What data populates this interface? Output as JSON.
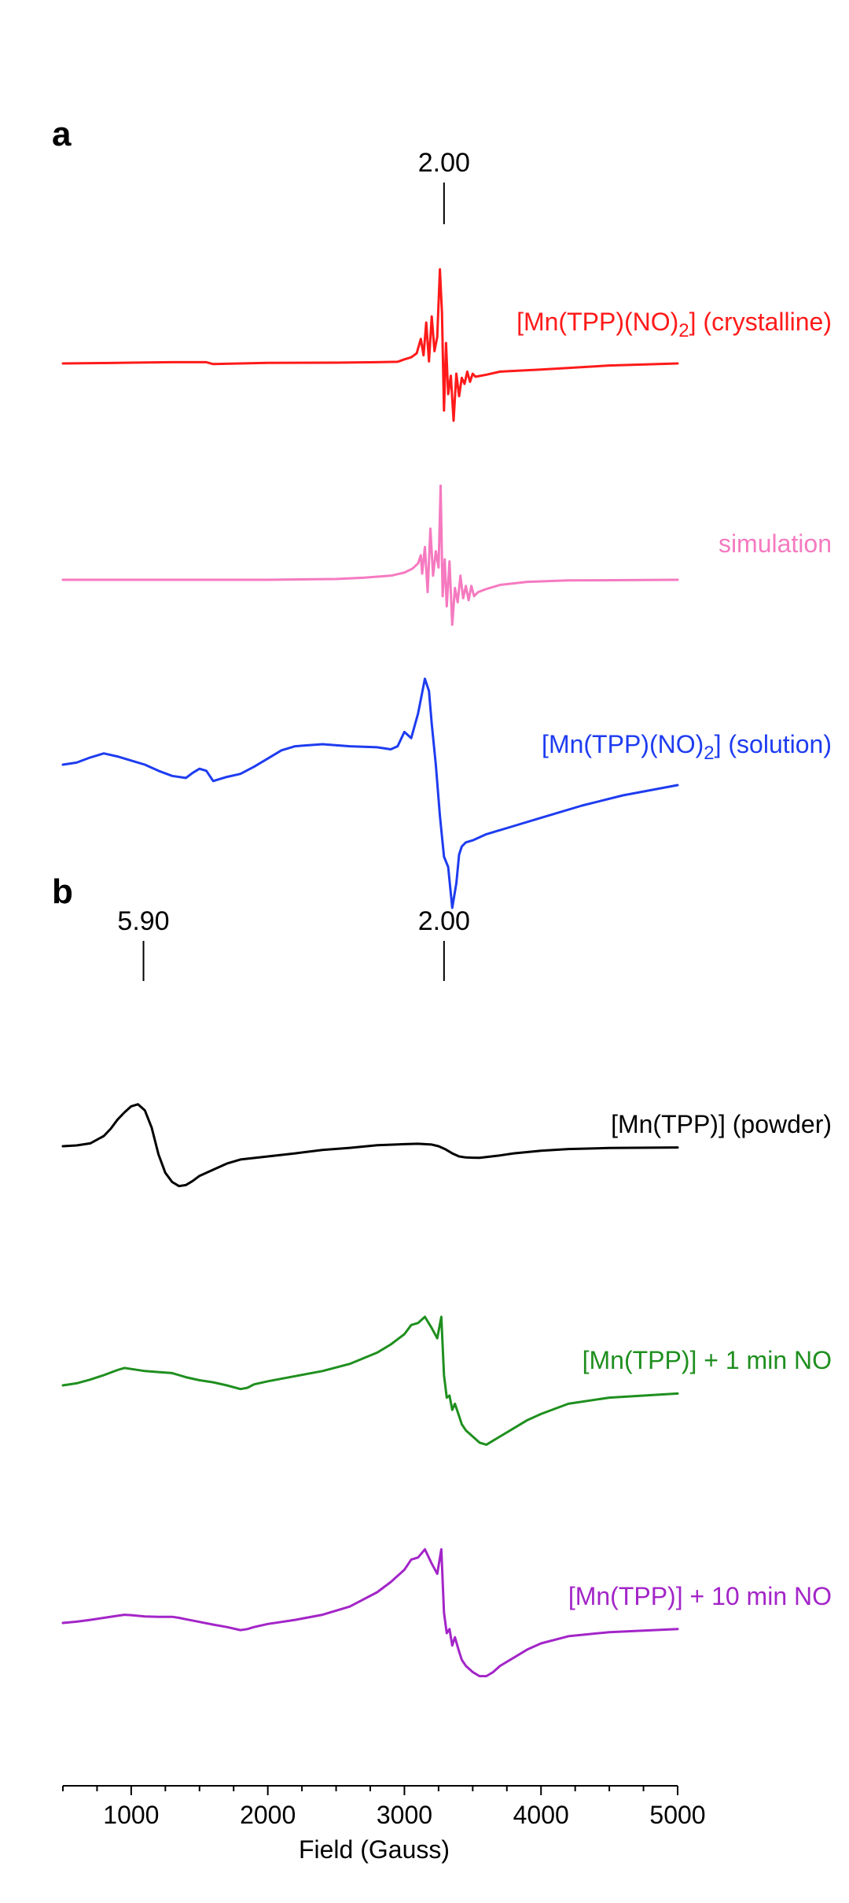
{
  "chart_data": {
    "type": "line",
    "xlabel": "Field (Gauss)",
    "xlim": [
      500,
      5000
    ],
    "xticks": [
      1000,
      2000,
      3000,
      4000,
      5000
    ],
    "grid": false,
    "panels": [
      {
        "letter": "a",
        "markers": [
          {
            "label": "2.00",
            "x": 3290
          }
        ],
        "series": [
          {
            "name": "[Mn(TPP)(NO)",
            "sub": "2",
            "name_suffix": "] (crystalline)",
            "color": "#ff1a1a",
            "baseline": 0,
            "x": [
              500,
              800,
              1000,
              1300,
              1500,
              1550,
              1600,
              1800,
              2000,
              2500,
              2800,
              2950,
              3000,
              3050,
              3090,
              3120,
              3140,
              3160,
              3180,
              3200,
              3220,
              3240,
              3260,
              3275,
              3290,
              3305,
              3320,
              3340,
              3360,
              3380,
              3400,
              3420,
              3440,
              3460,
              3480,
              3500,
              3520,
              3560,
              3600,
              3700,
              4000,
              4500,
              5000
            ],
            "y": [
              0,
              0.02,
              0.04,
              0.06,
              0.06,
              0.06,
              -0.03,
              0.0,
              0.03,
              0.04,
              0.06,
              0.08,
              0.2,
              0.3,
              0.5,
              1.2,
              0.4,
              2.0,
              0.1,
              2.3,
              0.6,
              1.3,
              4.6,
              2.5,
              -2.3,
              1.0,
              -1.5,
              -0.6,
              -2.8,
              -0.5,
              -1.6,
              -0.7,
              -1.0,
              -0.4,
              -0.9,
              -0.5,
              -0.65,
              -0.6,
              -0.55,
              -0.4,
              -0.3,
              -0.1,
              0.0
            ]
          },
          {
            "name": "simulation",
            "color": "#f57ac0",
            "baseline": 0,
            "x": [
              500,
              1000,
              2000,
              2500,
              2700,
              2900,
              3000,
              3060,
              3100,
              3120,
              3130,
              3150,
              3170,
              3190,
              3210,
              3230,
              3250,
              3265,
              3280,
              3295,
              3310,
              3330,
              3350,
              3370,
              3390,
              3410,
              3430,
              3450,
              3470,
              3490,
              3510,
              3540,
              3600,
              3700,
              3900,
              4200,
              5000
            ],
            "y": [
              0,
              0,
              0,
              0.04,
              0.1,
              0.2,
              0.35,
              0.55,
              0.8,
              1.2,
              0.3,
              1.6,
              -0.6,
              2.5,
              0.2,
              1.4,
              0.6,
              4.6,
              -0.8,
              1.0,
              -1.3,
              0.9,
              -2.2,
              -0.4,
              -1.1,
              0.2,
              -0.9,
              -0.3,
              -1.0,
              -0.3,
              -0.8,
              -0.6,
              -0.45,
              -0.25,
              -0.1,
              -0.03,
              0
            ]
          },
          {
            "name": "[Mn(TPP)(NO)",
            "sub": "2",
            "name_suffix": "] (solution)",
            "color": "#1e3cf0",
            "baseline": 0,
            "x": [
              500,
              600,
              700,
              800,
              900,
              1000,
              1100,
              1200,
              1300,
              1400,
              1450,
              1500,
              1550,
              1600,
              1650,
              1700,
              1800,
              1900,
              2000,
              2100,
              2200,
              2400,
              2600,
              2800,
              2900,
              2950,
              3000,
              3050,
              3100,
              3150,
              3180,
              3200,
              3230,
              3260,
              3290,
              3320,
              3350,
              3380,
              3400,
              3420,
              3450,
              3500,
              3600,
              3800,
              4000,
              4300,
              4600,
              5000
            ],
            "y": [
              0,
              0.1,
              0.35,
              0.55,
              0.4,
              0.2,
              0.0,
              -0.3,
              -0.55,
              -0.65,
              -0.4,
              -0.2,
              -0.3,
              -0.8,
              -0.7,
              -0.6,
              -0.45,
              -0.1,
              0.3,
              0.7,
              0.9,
              1.0,
              0.9,
              0.85,
              0.75,
              0.9,
              1.6,
              1.3,
              2.5,
              4.2,
              3.6,
              2.0,
              0.0,
              -2.5,
              -4.5,
              -5.0,
              -7.0,
              -5.8,
              -4.4,
              -4.0,
              -3.8,
              -3.7,
              -3.4,
              -3.0,
              -2.6,
              -2.0,
              -1.5,
              -1.0
            ]
          }
        ]
      },
      {
        "letter": "b",
        "markers": [
          {
            "label": "5.90",
            "x": 1090
          },
          {
            "label": "2.00",
            "x": 3290
          }
        ],
        "series": [
          {
            "name": "[Mn(TPP)] (powder)",
            "color": "#000000",
            "baseline": 0,
            "x": [
              500,
              600,
              700,
              800,
              850,
              900,
              950,
              1000,
              1050,
              1100,
              1150,
              1200,
              1250,
              1300,
              1350,
              1400,
              1450,
              1500,
              1600,
              1700,
              1800,
              2000,
              2200,
              2400,
              2600,
              2800,
              3000,
              3100,
              3200,
              3250,
              3300,
              3350,
              3400,
              3450,
              3500,
              3550,
              3600,
              3700,
              3800,
              4000,
              4200,
              4500,
              5000
            ],
            "y": [
              0,
              0.04,
              0.14,
              0.5,
              0.85,
              1.3,
              1.65,
              1.95,
              2.05,
              1.75,
              0.9,
              -0.4,
              -1.3,
              -1.75,
              -1.95,
              -1.9,
              -1.7,
              -1.45,
              -1.15,
              -0.85,
              -0.65,
              -0.5,
              -0.35,
              -0.18,
              -0.08,
              0.05,
              0.1,
              0.12,
              0.08,
              0.0,
              -0.15,
              -0.35,
              -0.5,
              -0.55,
              -0.56,
              -0.57,
              -0.53,
              -0.45,
              -0.35,
              -0.22,
              -0.14,
              -0.09,
              -0.06
            ]
          },
          {
            "name": "[Mn(TPP)] + 1 min NO",
            "color": "#1f8f1f",
            "baseline": 0,
            "x": [
              500,
              600,
              700,
              800,
              900,
              950,
              1000,
              1100,
              1200,
              1300,
              1350,
              1400,
              1500,
              1600,
              1700,
              1800,
              1850,
              1900,
              2000,
              2200,
              2400,
              2600,
              2800,
              2900,
              3000,
              3050,
              3100,
              3150,
              3200,
              3240,
              3270,
              3290,
              3310,
              3330,
              3350,
              3370,
              3400,
              3420,
              3450,
              3500,
              3550,
              3600,
              3650,
              3700,
              3800,
              3900,
              4000,
              4200,
              4500,
              5000
            ],
            "y": [
              0,
              0.1,
              0.28,
              0.5,
              0.75,
              0.85,
              0.8,
              0.7,
              0.65,
              0.6,
              0.5,
              0.4,
              0.25,
              0.15,
              0.0,
              -0.18,
              -0.12,
              0.05,
              0.2,
              0.45,
              0.7,
              1.05,
              1.6,
              2.0,
              2.5,
              2.95,
              3.05,
              3.35,
              2.8,
              2.3,
              3.35,
              0.5,
              -0.6,
              -0.5,
              -1.2,
              -0.9,
              -1.5,
              -1.9,
              -2.2,
              -2.5,
              -2.8,
              -2.9,
              -2.7,
              -2.5,
              -2.1,
              -1.7,
              -1.4,
              -0.9,
              -0.6,
              -0.4
            ]
          },
          {
            "name": "[Mn(TPP)] + 10 min NO",
            "color": "#a325c8",
            "baseline": 0,
            "x": [
              500,
              600,
              700,
              800,
              900,
              950,
              1000,
              1100,
              1200,
              1300,
              1350,
              1400,
              1500,
              1600,
              1700,
              1800,
              1850,
              1900,
              2000,
              2200,
              2400,
              2600,
              2800,
              2900,
              3000,
              3050,
              3100,
              3150,
              3200,
              3240,
              3270,
              3290,
              3310,
              3330,
              3350,
              3370,
              3400,
              3420,
              3450,
              3500,
              3550,
              3600,
              3650,
              3700,
              3800,
              3900,
              4000,
              4200,
              4500,
              5000
            ],
            "y": [
              0,
              0.06,
              0.15,
              0.25,
              0.35,
              0.4,
              0.38,
              0.32,
              0.3,
              0.3,
              0.25,
              0.18,
              0.05,
              -0.08,
              -0.2,
              -0.35,
              -0.3,
              -0.2,
              -0.05,
              0.15,
              0.4,
              0.8,
              1.5,
              2.0,
              2.6,
              3.1,
              3.2,
              3.6,
              2.9,
              2.4,
              3.6,
              0.5,
              -0.5,
              -0.3,
              -1.1,
              -0.7,
              -1.4,
              -1.8,
              -2.1,
              -2.4,
              -2.6,
              -2.6,
              -2.4,
              -2.1,
              -1.7,
              -1.3,
              -1.0,
              -0.65,
              -0.45,
              -0.3
            ]
          }
        ]
      }
    ]
  }
}
